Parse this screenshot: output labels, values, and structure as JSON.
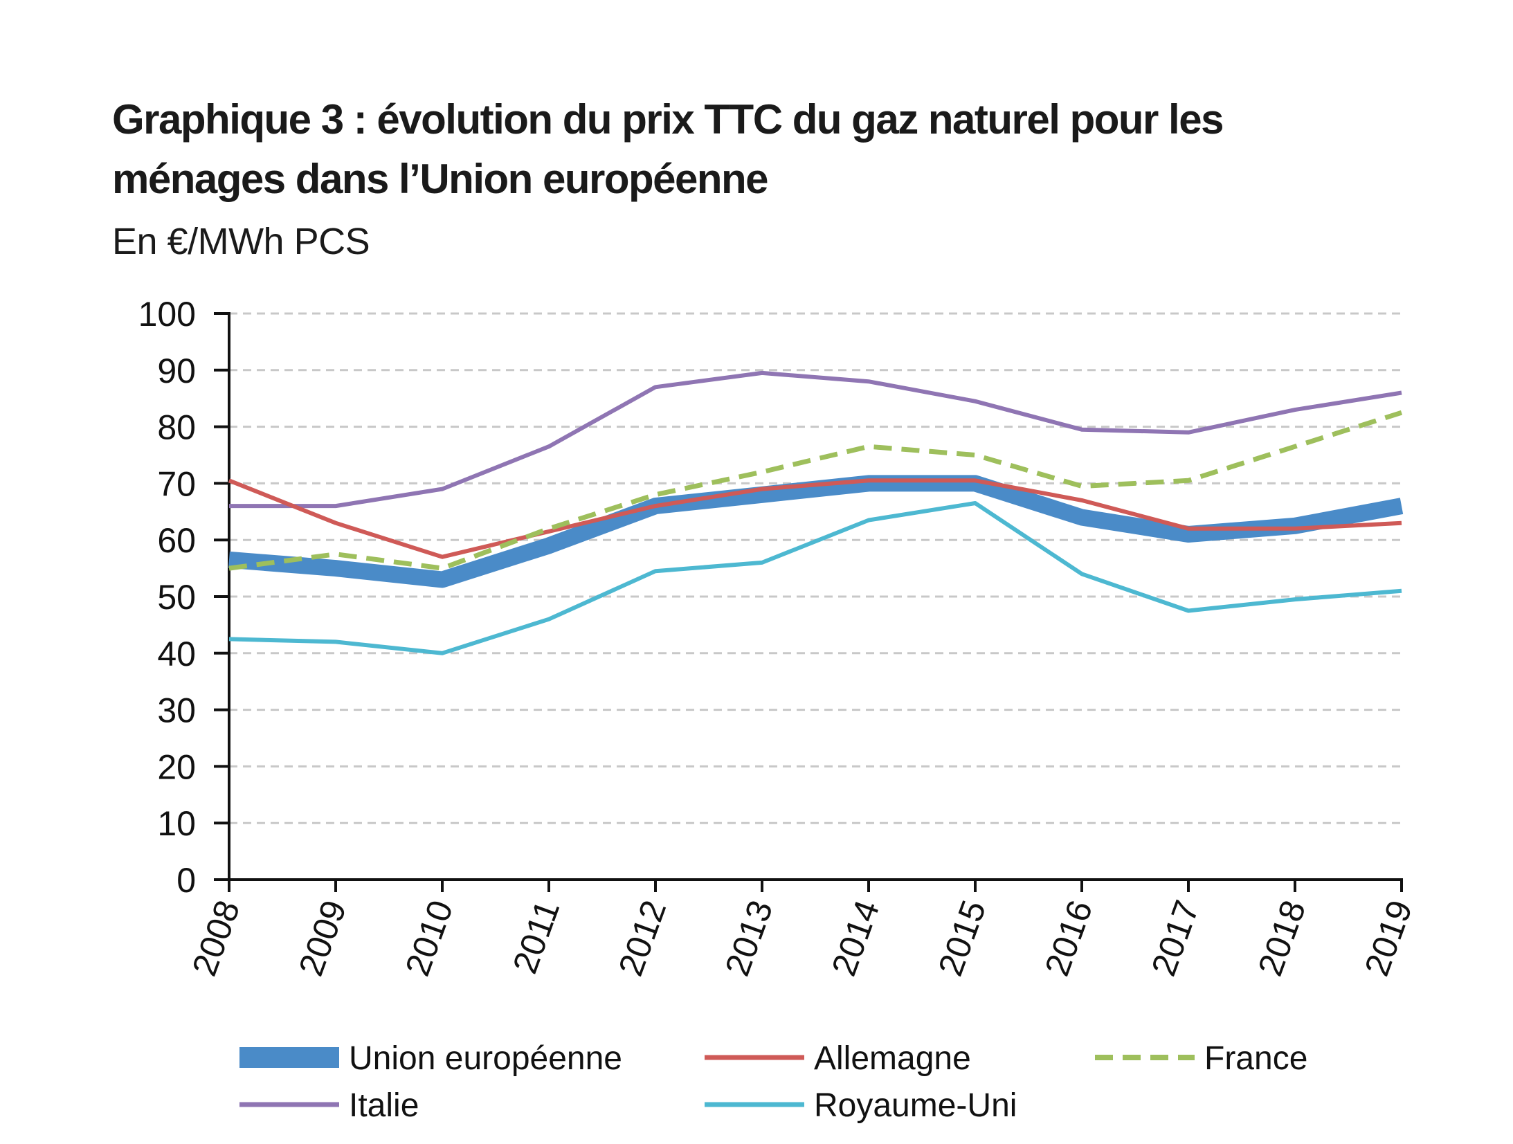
{
  "chart_data": {
    "type": "line",
    "title": "Graphique 3 : évolution du prix TTC du gaz naturel pour les ménages dans l’Union européenne",
    "title_lines": [
      "Graphique 3 : évolution du prix TTC du gaz naturel pour les",
      "ménages dans l’Union européenne"
    ],
    "subtitle": "En €/MWh PCS",
    "xlabel": "",
    "ylabel": "",
    "ylim": [
      0,
      100
    ],
    "y_ticks": [
      "0",
      "10",
      "20",
      "30",
      "40",
      "50",
      "60",
      "70",
      "80",
      "90",
      "100"
    ],
    "categories": [
      "2008",
      "2009",
      "2010",
      "2011",
      "2012",
      "2013",
      "2014",
      "2015",
      "2016",
      "2017",
      "2018",
      "2019"
    ],
    "grid": "horizontal dashed",
    "legend_position": "bottom",
    "series": [
      {
        "name": "Union européenne",
        "color": "#4a8bc8",
        "style": "thick",
        "values": [
          56.5,
          55,
          53,
          59,
          66,
          68,
          70,
          70,
          64,
          61,
          62.5,
          66
        ]
      },
      {
        "name": "Allemagne",
        "color": "#cf5a57",
        "style": "solid",
        "values": [
          70.5,
          63,
          57,
          61.5,
          66,
          69,
          70.5,
          70.5,
          67,
          62,
          62,
          63
        ]
      },
      {
        "name": "France",
        "color": "#9ebf5c",
        "style": "dashed",
        "values": [
          55,
          57.5,
          55,
          62,
          68,
          72,
          76.5,
          75,
          69.5,
          70.5,
          76.5,
          82.5
        ]
      },
      {
        "name": "Italie",
        "color": "#8f75b3",
        "style": "solid",
        "values": [
          66,
          66,
          69,
          76.5,
          87,
          89.5,
          88,
          84.5,
          79.5,
          79,
          83,
          86
        ]
      },
      {
        "name": "Royaume-Uni",
        "color": "#4db8d1",
        "style": "solid",
        "values": [
          42.5,
          42,
          40,
          46,
          54.5,
          56,
          63.5,
          66.5,
          54,
          47.5,
          49.5,
          51
        ]
      }
    ]
  }
}
